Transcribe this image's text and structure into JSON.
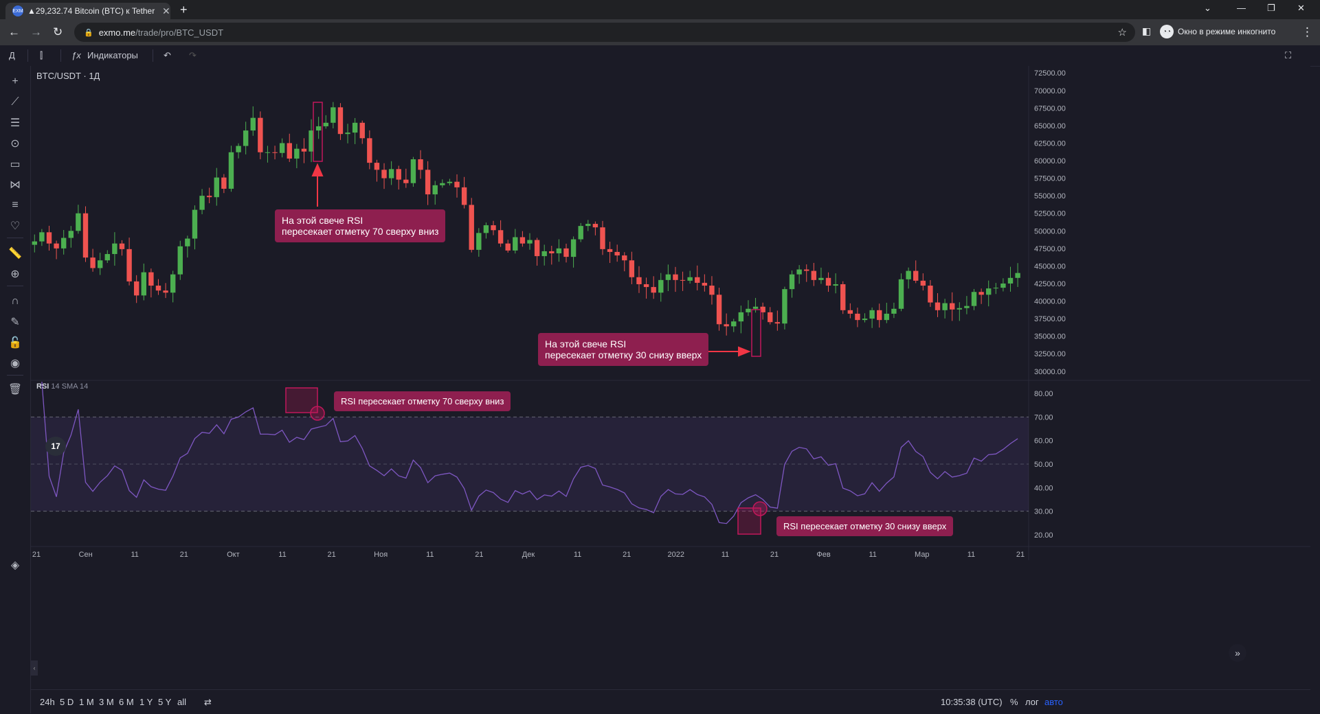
{
  "browser": {
    "tab_title": "▲29,232.74 Bitcoin (BTC) к Tether",
    "favicon_text": "EXM",
    "url_domain": "exmo.me",
    "url_path": "/trade/pro/BTC_USDT",
    "incognito_label": "Окно в режиме инкогнито"
  },
  "toolbar": {
    "interval": "Д",
    "indicators_label": "Индикаторы"
  },
  "chart": {
    "symbol_label": "BTC/USDT · 1Д",
    "rsi_name": "RSI",
    "rsi_params": "14 SMA 14",
    "tv_logo": "17",
    "annotations": {
      "top_candle": [
        "На этой свече RSI",
        "пересекает отметку 70 сверху вниз"
      ],
      "bottom_candle": [
        "На этой свече RSI",
        "пересекает отметку 30 снизу вверх"
      ],
      "rsi_cross_70": "RSI пересекает отметку 70 сверху вниз",
      "rsi_cross_30": "RSI пересекает отметку 30 снизу вверх"
    },
    "colors": {
      "up": "#26a69a",
      "up_bright": "#4caf50",
      "down": "#ef5350",
      "rsi_line": "#7e57c2",
      "annotation": "#8e1f4f",
      "highlight": "#c2185b"
    }
  },
  "chart_data": {
    "type": "candlestick",
    "title": "BTC/USDT · 1Д",
    "y_axis_price": [
      "72500.00",
      "70000.00",
      "67500.00",
      "65000.00",
      "62500.00",
      "60000.00",
      "57500.00",
      "55000.00",
      "52500.00",
      "50000.00",
      "47500.00",
      "45000.00",
      "42500.00",
      "40000.00",
      "37500.00",
      "35000.00",
      "32500.00",
      "30000.00"
    ],
    "y_axis_rsi": [
      "80.00",
      "70.00",
      "60.00",
      "50.00",
      "40.00",
      "30.00",
      "20.00"
    ],
    "x_labels": [
      "21",
      "Сен",
      "11",
      "21",
      "Окт",
      "11",
      "21",
      "Ноя",
      "11",
      "21",
      "Дек",
      "11",
      "21",
      "2022",
      "11",
      "21",
      "Фев",
      "11",
      "Мар",
      "11",
      "21"
    ],
    "price_range": [
      29000,
      73500
    ],
    "rsi_range": [
      15,
      85
    ],
    "rsi_levels": [
      70,
      50,
      30
    ],
    "close_path": [
      48500,
      49800,
      48200,
      47500,
      49000,
      50000,
      52500,
      46200,
      44700,
      45800,
      46700,
      48200,
      47400,
      42800,
      40800,
      44100,
      42200,
      41500,
      41200,
      43800,
      47800,
      48900,
      53000,
      55000,
      54800,
      57600,
      56000,
      61200,
      62100,
      64300,
      66100,
      61200,
      61200,
      61100,
      62500,
      60300,
      61700,
      61300,
      64300,
      64900,
      65400,
      67600,
      63800,
      64000,
      65400,
      63200,
      59700,
      58700,
      57500,
      58800,
      57300,
      56800,
      60200,
      58700,
      55200,
      56500,
      56800,
      57000,
      56200,
      53700,
      47300,
      49700,
      50800,
      50100,
      48200,
      47200,
      49100,
      48200,
      48700,
      46400,
      47100,
      46800,
      47500,
      46300,
      48800,
      50700,
      51000,
      50500,
      47400,
      47000,
      46500,
      45800,
      43400,
      42400,
      42000,
      41200,
      43000,
      43800,
      43000,
      42900,
      43400,
      42600,
      42200,
      40900,
      36700,
      36400,
      37100,
      38400,
      38900,
      39200,
      38400,
      37000,
      36800,
      41700,
      43800,
      44500,
      44300,
      43000,
      43300,
      42200,
      42400,
      38700,
      38200,
      37300,
      37500,
      38700,
      37300,
      38200,
      38900,
      43100,
      44300,
      42900,
      42200,
      39800,
      38700,
      39700,
      38800,
      39000,
      39300,
      41300,
      40900,
      41800,
      41900,
      42500,
      43300,
      44000
    ]
  }
}
